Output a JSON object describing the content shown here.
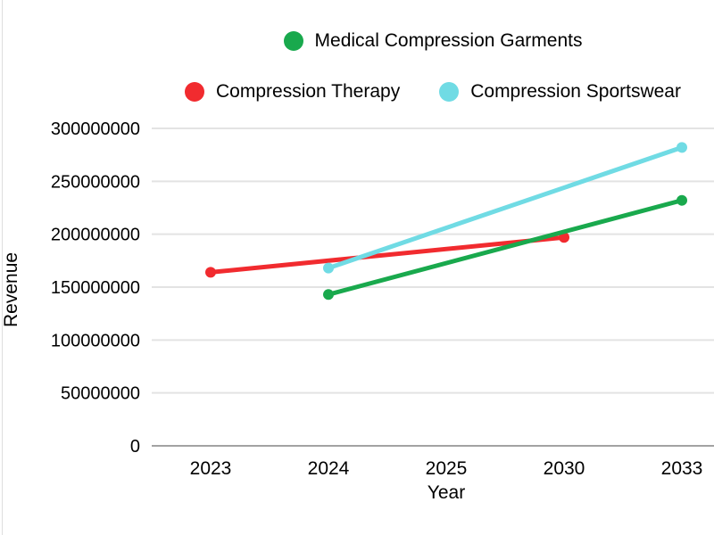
{
  "chart_data": {
    "type": "line",
    "title": "",
    "xlabel": "Year",
    "ylabel": "Revenue",
    "x_categories": [
      "2023",
      "2024",
      "2025",
      "2030",
      "2033"
    ],
    "yticks": [
      0,
      50000000,
      100000000,
      150000000,
      200000000,
      250000000,
      300000000
    ],
    "ylim": [
      0,
      300000000
    ],
    "grid": true,
    "legend_position": "top",
    "series": [
      {
        "name": "Compression Therapy",
        "color": "#f12b2f",
        "points": [
          {
            "x": "2023",
            "y": 164000000
          },
          {
            "x": "2030",
            "y": 197000000
          }
        ]
      },
      {
        "name": "Medical Compression Garments",
        "color": "#19a94d",
        "points": [
          {
            "x": "2024",
            "y": 143000000
          },
          {
            "x": "2033",
            "y": 232000000
          }
        ]
      },
      {
        "name": "Compression Sportswear",
        "color": "#70dbe4",
        "points": [
          {
            "x": "2024",
            "y": 168000000
          },
          {
            "x": "2033",
            "y": 282000000
          }
        ]
      }
    ]
  },
  "legend": {
    "rows": [
      [
        {
          "label": "Medical Compression Garments",
          "color": "#19a94d"
        }
      ],
      [
        {
          "label": "Compression Therapy",
          "color": "#f12b2f"
        },
        {
          "label": "Compression Sportswear",
          "color": "#70dbe4"
        }
      ]
    ]
  },
  "colors": {
    "grid": "#e3e3e3",
    "baseline": "#a3a3a3",
    "text": "#000000",
    "background": "#ffffff"
  }
}
